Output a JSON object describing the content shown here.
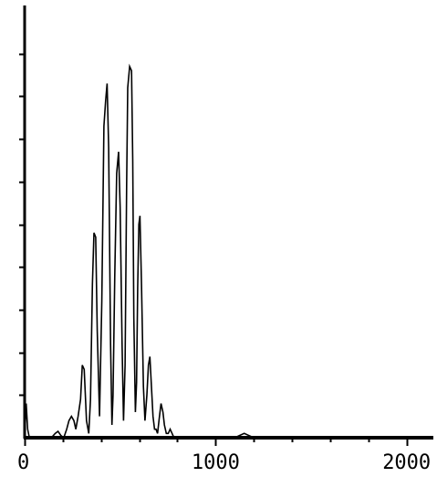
{
  "chart_data": {
    "type": "line",
    "title": "",
    "xlabel": "",
    "ylabel": "",
    "xlim": [
      0,
      2140
    ],
    "ylim": [
      0,
      10
    ],
    "x_ticks_labeled": [
      "0",
      "1000",
      "2000"
    ],
    "x_minor_tick_values": [
      200,
      400,
      600,
      800,
      1200,
      1400,
      1600,
      1800
    ],
    "y_tick_values": [
      1,
      2,
      3,
      4,
      5,
      6,
      7,
      8,
      9
    ],
    "grid": false,
    "line_color": "#000000",
    "series": [
      {
        "x": [
          0,
          8,
          16,
          25,
          40,
          60,
          80,
          100,
          120,
          140,
          160,
          175,
          190,
          205,
          220,
          232,
          245,
          258,
          268,
          280,
          293,
          302,
          312,
          324,
          336,
          345,
          355,
          363,
          372,
          380,
          392,
          404,
          415,
          424,
          432,
          440,
          450,
          457,
          463,
          472,
          482,
          492,
          500,
          510,
          518,
          526,
          534,
          540,
          550,
          560,
          566,
          572,
          580,
          586,
          592,
          598,
          604,
          612,
          622,
          630,
          640,
          648,
          656,
          664,
          672,
          680,
          688,
          696,
          706,
          714,
          724,
          732,
          742,
          752,
          762,
          772,
          782,
          795,
          810,
          825,
          840,
          860,
          900,
          1000,
          1100,
          1150,
          1170,
          1200,
          1400,
          1600,
          1800,
          2000,
          2140
        ],
        "y": [
          0,
          0.8,
          0.2,
          0,
          0,
          0,
          0,
          0,
          0,
          0,
          0.1,
          0.15,
          0.05,
          0,
          0.2,
          0.4,
          0.5,
          0.4,
          0.2,
          0.5,
          0.9,
          1.7,
          1.6,
          0.4,
          0.1,
          0.9,
          3.6,
          4.8,
          4.7,
          2.5,
          0.5,
          3.2,
          7.3,
          7.9,
          8.3,
          6.8,
          2.2,
          0.3,
          1.0,
          3.8,
          6.2,
          6.7,
          5.4,
          2.2,
          0.4,
          1.7,
          5.9,
          8.2,
          8.7,
          8.6,
          6.5,
          2.8,
          0.6,
          1.3,
          3.5,
          5.0,
          5.2,
          3.6,
          1.2,
          0.4,
          1.0,
          1.7,
          1.9,
          1.2,
          0.5,
          0.2,
          0.2,
          0.1,
          0.5,
          0.8,
          0.6,
          0.3,
          0.1,
          0.1,
          0.2,
          0.1,
          0,
          0,
          0,
          0,
          0,
          0,
          0,
          0,
          0,
          0.1,
          0.06,
          0,
          0,
          0,
          0,
          0,
          0
        ]
      }
    ]
  }
}
